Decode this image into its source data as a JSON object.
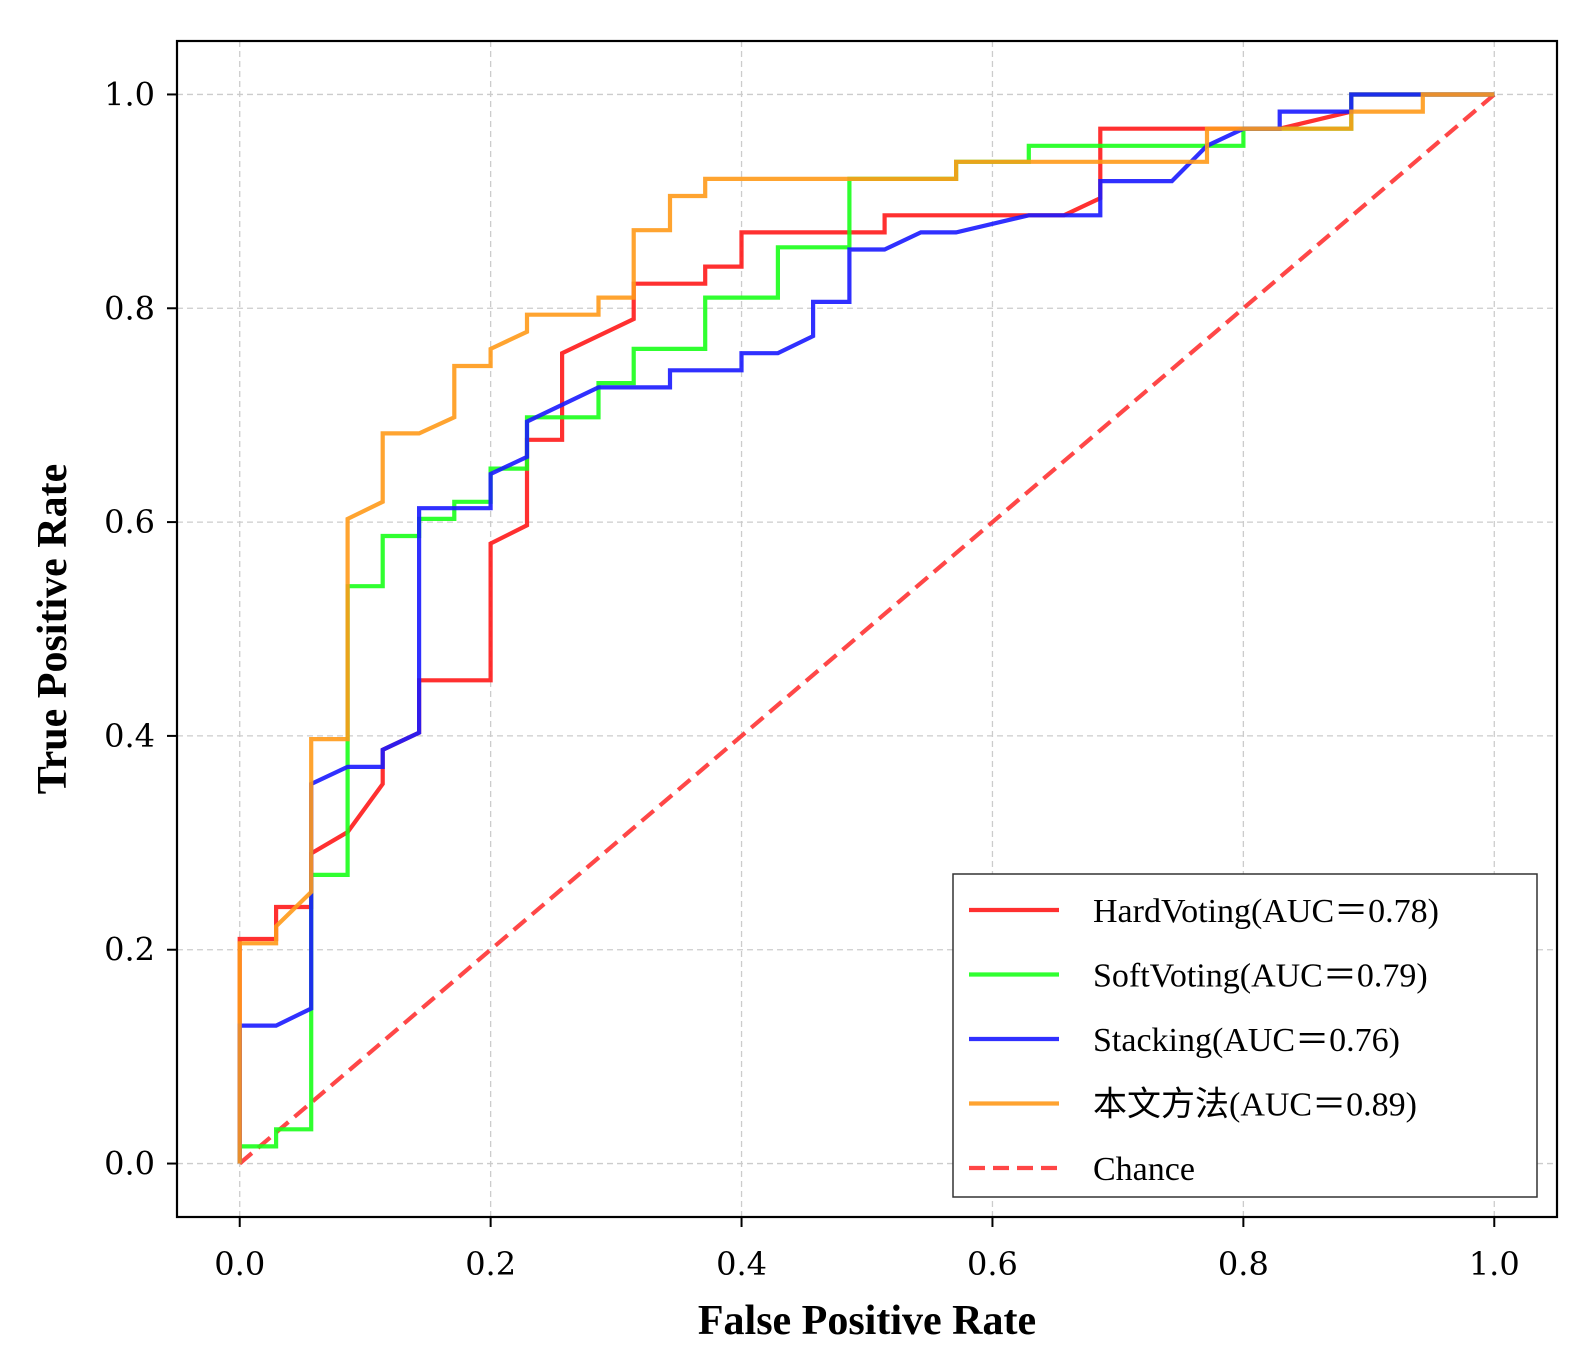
{
  "chart_data": {
    "type": "line",
    "title": "",
    "xlabel": "False Positive Rate",
    "ylabel": "True Positive Rate",
    "xlim": [
      -0.05,
      1.05
    ],
    "ylim": [
      -0.05,
      1.05
    ],
    "xticks": [
      0.0,
      0.2,
      0.4,
      0.6,
      0.8,
      1.0
    ],
    "yticks": [
      0.0,
      0.2,
      0.4,
      0.6,
      0.8,
      1.0
    ],
    "xtick_labels": [
      "0.0",
      "0.2",
      "0.4",
      "0.6",
      "0.8",
      "1.0"
    ],
    "ytick_labels": [
      "0.0",
      "0.2",
      "0.4",
      "0.6",
      "0.8",
      "1.0"
    ],
    "grid": true,
    "legend_position": "lower-right",
    "series": [
      {
        "name": "HardVoting(AUC＝0.78)",
        "color": "#ff1a1a",
        "style": "solid",
        "x": [
          0.0,
          0.0,
          0.029,
          0.029,
          0.057,
          0.057,
          0.086,
          0.114,
          0.114,
          0.143,
          0.143,
          0.2,
          0.2,
          0.229,
          0.229,
          0.257,
          0.257,
          0.314,
          0.314,
          0.371,
          0.371,
          0.4,
          0.4,
          0.514,
          0.514,
          0.629,
          0.657,
          0.686,
          0.686,
          0.771,
          0.771,
          0.829,
          0.886,
          0.886,
          1.0
        ],
        "y": [
          0.0,
          0.21,
          0.21,
          0.24,
          0.24,
          0.29,
          0.31,
          0.355,
          0.387,
          0.403,
          0.452,
          0.452,
          0.58,
          0.597,
          0.677,
          0.677,
          0.758,
          0.79,
          0.823,
          0.823,
          0.839,
          0.839,
          0.871,
          0.871,
          0.887,
          0.887,
          0.887,
          0.903,
          0.968,
          0.968,
          0.968,
          0.968,
          0.984,
          1.0,
          1.0
        ]
      },
      {
        "name": "SoftVoting(AUC＝0.79)",
        "color": "#1aff1a",
        "style": "solid",
        "x": [
          0.0,
          0.0,
          0.029,
          0.029,
          0.057,
          0.057,
          0.086,
          0.086,
          0.114,
          0.114,
          0.143,
          0.143,
          0.171,
          0.171,
          0.2,
          0.2,
          0.229,
          0.229,
          0.286,
          0.286,
          0.314,
          0.314,
          0.371,
          0.371,
          0.429,
          0.429,
          0.486,
          0.486,
          0.571,
          0.571,
          0.629,
          0.629,
          0.8,
          0.8,
          0.886,
          0.886,
          1.0
        ],
        "y": [
          0.0,
          0.016,
          0.016,
          0.032,
          0.032,
          0.27,
          0.27,
          0.54,
          0.54,
          0.587,
          0.587,
          0.603,
          0.603,
          0.619,
          0.619,
          0.65,
          0.65,
          0.698,
          0.698,
          0.73,
          0.73,
          0.762,
          0.762,
          0.81,
          0.81,
          0.857,
          0.857,
          0.921,
          0.921,
          0.937,
          0.937,
          0.952,
          0.952,
          0.968,
          0.968,
          1.0,
          1.0
        ]
      },
      {
        "name": "Stacking(AUC＝0.76)",
        "color": "#1a1aff",
        "style": "solid",
        "x": [
          0.0,
          0.0,
          0.029,
          0.057,
          0.057,
          0.086,
          0.114,
          0.114,
          0.143,
          0.143,
          0.2,
          0.2,
          0.229,
          0.229,
          0.286,
          0.343,
          0.343,
          0.4,
          0.4,
          0.429,
          0.457,
          0.457,
          0.486,
          0.486,
          0.514,
          0.543,
          0.571,
          0.629,
          0.686,
          0.686,
          0.743,
          0.771,
          0.8,
          0.8,
          0.829,
          0.829,
          0.886,
          0.886,
          1.0
        ],
        "y": [
          0.0,
          0.129,
          0.129,
          0.145,
          0.355,
          0.371,
          0.371,
          0.387,
          0.403,
          0.613,
          0.613,
          0.645,
          0.661,
          0.694,
          0.726,
          0.726,
          0.742,
          0.742,
          0.758,
          0.758,
          0.774,
          0.806,
          0.806,
          0.855,
          0.855,
          0.871,
          0.871,
          0.887,
          0.887,
          0.919,
          0.919,
          0.952,
          0.968,
          0.968,
          0.968,
          0.984,
          0.984,
          1.0,
          1.0
        ]
      },
      {
        "name": "本文方法(AUC＝0.89)",
        "color": "#ff9a1a",
        "style": "solid",
        "x": [
          0.0,
          0.0,
          0.029,
          0.029,
          0.057,
          0.057,
          0.086,
          0.086,
          0.114,
          0.114,
          0.143,
          0.171,
          0.171,
          0.2,
          0.2,
          0.229,
          0.229,
          0.286,
          0.286,
          0.314,
          0.314,
          0.343,
          0.343,
          0.371,
          0.371,
          0.571,
          0.571,
          0.771,
          0.771,
          0.886,
          0.886,
          0.943,
          0.943,
          1.0
        ],
        "y": [
          0.0,
          0.206,
          0.206,
          0.222,
          0.254,
          0.397,
          0.397,
          0.603,
          0.619,
          0.683,
          0.683,
          0.698,
          0.746,
          0.746,
          0.762,
          0.778,
          0.794,
          0.794,
          0.81,
          0.81,
          0.873,
          0.873,
          0.905,
          0.905,
          0.921,
          0.921,
          0.937,
          0.937,
          0.968,
          0.968,
          0.984,
          0.984,
          1.0,
          1.0
        ]
      },
      {
        "name": "Chance",
        "color": "#ff3333",
        "style": "dashed",
        "x": [
          0.0,
          1.0
        ],
        "y": [
          0.0,
          1.0
        ]
      }
    ]
  }
}
